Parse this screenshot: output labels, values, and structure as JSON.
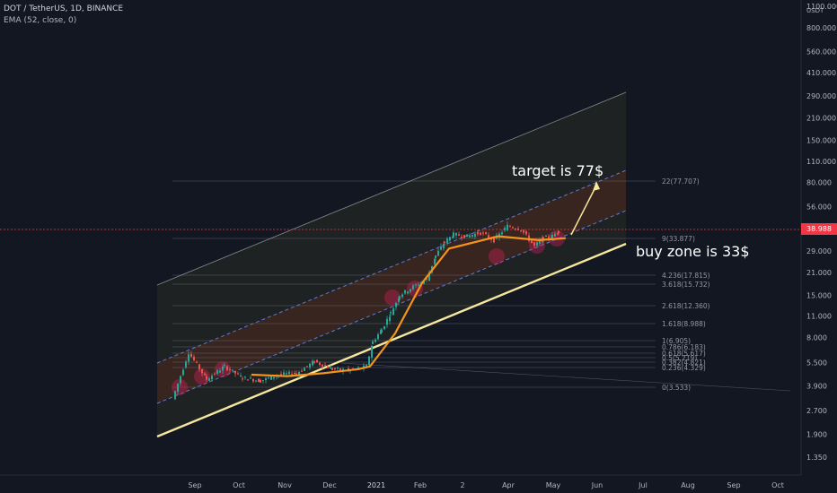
{
  "legend": {
    "symbol_line": "DOT / TetherUS, 1D, BINANCE",
    "indicator_line": "EMA (52, close, 0)"
  },
  "price_scale": {
    "currency": "USDT",
    "current_price": "38.988",
    "ticks": [
      "1100.000",
      "800.000",
      "560.000",
      "410.000",
      "290.000",
      "210.000",
      "150.000",
      "110.000",
      "80.000",
      "56.000",
      "39.000",
      "29.000",
      "21.000",
      "15.000",
      "11.000",
      "8.000",
      "5.500",
      "3.900",
      "2.700",
      "1.900",
      "1.350"
    ]
  },
  "time_scale": {
    "labels": [
      "Sep",
      "Oct",
      "Nov",
      "Dec",
      "2021",
      "Feb",
      "2",
      "Apr",
      "May",
      "Jun",
      "Jul",
      "Aug",
      "Sep",
      "Oct"
    ]
  },
  "fib_levels": [
    "22(77.707)",
    "9(33.877)",
    "4.236(17.815)",
    "3.618(15.732)",
    "2.618(12.360)",
    "1.618(8.988)",
    "1(6.905)",
    "0.786(6.183)",
    "0.618(5.617)",
    "0.5(5.219)",
    "0.382(4.821)",
    "0.236(4.329)",
    "0(3.533)"
  ],
  "annotations": {
    "target": "target is 77$",
    "buy_zone": "buy zone is 33$"
  },
  "colors": {
    "background": "#131722",
    "up": "#26a69a",
    "down": "#ef5350",
    "ema": "#f7931a",
    "trendline": "#f5e79e",
    "channel_dash": "#5b7bd6",
    "price_line": "#f23645",
    "text": "#b2b5be"
  },
  "chart_data": {
    "type": "candlestick",
    "title": "DOT / TetherUS, 1D, BINANCE",
    "scale": "log",
    "ylim": [
      1.2,
      1300
    ],
    "series": [
      {
        "name": "EMA (52, close, 0)",
        "x": [
          "2020-09-28",
          "2020-10-20",
          "2020-11-15",
          "2020-12-10",
          "2021-01-01",
          "2021-01-20",
          "2021-02-10",
          "2021-03-05",
          "2021-04-05",
          "2021-04-25",
          "2021-05-10"
        ],
        "values": [
          4.6,
          4.5,
          4.7,
          5.0,
          5.2,
          8.5,
          18,
          30,
          36,
          34,
          35
        ]
      }
    ],
    "last_price": 38.988,
    "annotations": [
      "target is 77$",
      "buy zone is 33$"
    ]
  }
}
